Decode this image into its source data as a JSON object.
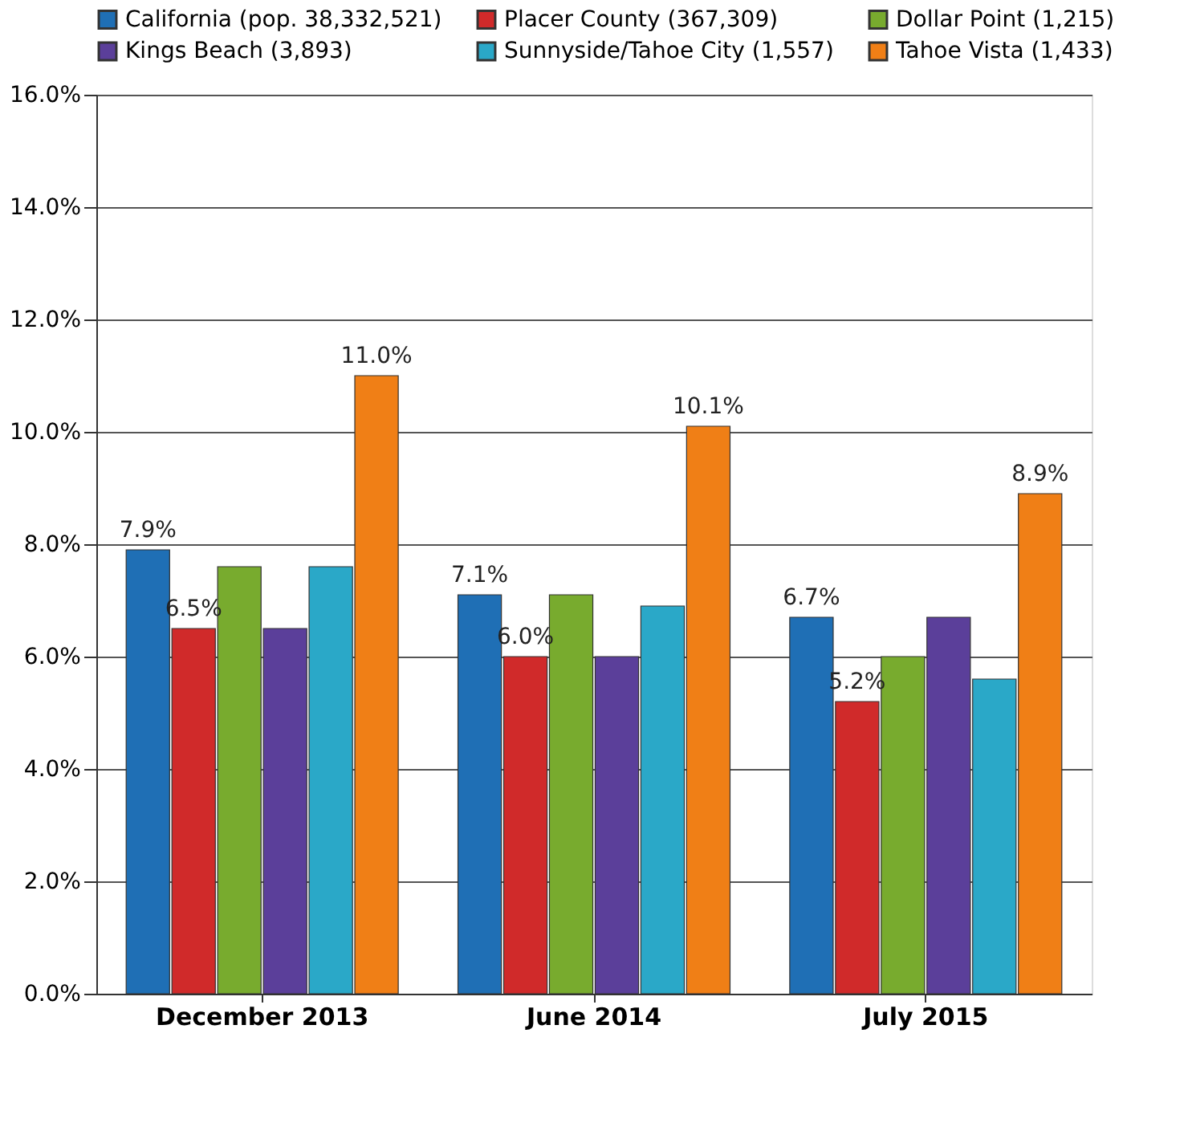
{
  "chart_data": {
    "type": "bar",
    "categories": [
      "December 2013",
      "June 2014",
      "July 2015"
    ],
    "series": [
      {
        "name": "California (pop. 38,332,521)",
        "color": "#1f6fb5",
        "values": [
          7.9,
          7.1,
          6.7
        ],
        "value_labels": [
          "7.9%",
          "7.1%",
          "6.7%"
        ]
      },
      {
        "name": "Placer County (367,309)",
        "color": "#d02a2a",
        "values": [
          6.5,
          6.0,
          5.2
        ],
        "value_labels": [
          "6.5%",
          "6.0%",
          "5.2%"
        ]
      },
      {
        "name": "Dollar Point (1,215)",
        "color": "#78ab2e",
        "values": [
          7.6,
          7.1,
          6.0
        ],
        "value_labels": [
          null,
          null,
          null
        ]
      },
      {
        "name": "Kings Beach (3,893)",
        "color": "#5b3f9a",
        "values": [
          6.5,
          6.0,
          6.7
        ],
        "value_labels": [
          null,
          null,
          null
        ]
      },
      {
        "name": "Sunnyside/Tahoe City (1,557)",
        "color": "#2aa8c8",
        "values": [
          7.6,
          6.9,
          5.6
        ],
        "value_labels": [
          null,
          null,
          null
        ]
      },
      {
        "name": "Tahoe Vista (1,433)",
        "color": "#f07f16",
        "values": [
          11.0,
          10.1,
          8.9
        ],
        "value_labels": [
          "11.0%",
          "10.1%",
          "8.9%"
        ]
      }
    ],
    "ylim": [
      0,
      16
    ],
    "yticks": [
      {
        "value": 0,
        "label": "0.0%"
      },
      {
        "value": 2,
        "label": "2.0%"
      },
      {
        "value": 4,
        "label": "4.0%"
      },
      {
        "value": 6,
        "label": "6.0%"
      },
      {
        "value": 8,
        "label": "8.0%"
      },
      {
        "value": 10,
        "label": "10.0%"
      },
      {
        "value": 12,
        "label": "12.0%"
      },
      {
        "value": 14,
        "label": "14.0%"
      },
      {
        "value": 16,
        "label": "16.0%"
      }
    ],
    "grid": "y",
    "legend": "top"
  }
}
